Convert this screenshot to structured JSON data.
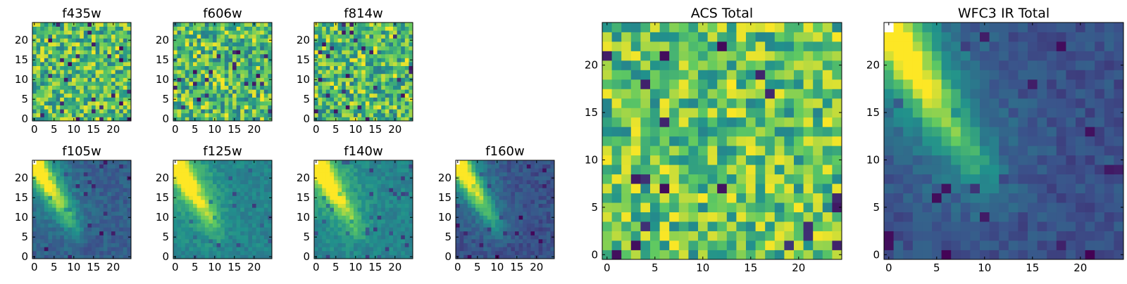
{
  "figure": {
    "colormap": "viridis",
    "colormap_stops": [
      "#440154",
      "#3b528b",
      "#21918c",
      "#5ec962",
      "#fde725"
    ]
  },
  "chart_data": [
    {
      "type": "heatmap",
      "title": "f435w",
      "grid": [
        25,
        25
      ],
      "xlim": [
        0,
        24
      ],
      "ylim": [
        0,
        24
      ],
      "xticks": [
        "0",
        "5",
        "10",
        "15",
        "20"
      ],
      "yticks": [
        "0",
        "5",
        "10",
        "15",
        "20"
      ],
      "pattern": "noise",
      "mean_level": 0.68,
      "seed": 11
    },
    {
      "type": "heatmap",
      "title": "f606w",
      "grid": [
        25,
        25
      ],
      "xlim": [
        0,
        24
      ],
      "ylim": [
        0,
        24
      ],
      "xticks": [
        "0",
        "5",
        "10",
        "15",
        "20"
      ],
      "yticks": [
        "0",
        "5",
        "10",
        "15",
        "20"
      ],
      "pattern": "noise",
      "mean_level": 0.66,
      "seed": 23
    },
    {
      "type": "heatmap",
      "title": "f814w",
      "grid": [
        25,
        25
      ],
      "xlim": [
        0,
        24
      ],
      "ylim": [
        0,
        24
      ],
      "xticks": [
        "0",
        "5",
        "10",
        "15",
        "20"
      ],
      "yticks": [
        "0",
        "5",
        "10",
        "15",
        "20"
      ],
      "pattern": "noise",
      "mean_level": 0.66,
      "seed": 37
    },
    {
      "type": "heatmap",
      "title": "f105w",
      "grid": [
        25,
        25
      ],
      "xlim": [
        0,
        24
      ],
      "ylim": [
        0,
        24
      ],
      "xticks": [
        "0",
        "5",
        "10",
        "15",
        "20"
      ],
      "yticks": [
        "0",
        "5",
        "10",
        "15",
        "20"
      ],
      "pattern": "diagonal_streak",
      "background_level": 0.3,
      "seed": 41
    },
    {
      "type": "heatmap",
      "title": "f125w",
      "grid": [
        25,
        25
      ],
      "xlim": [
        0,
        24
      ],
      "ylim": [
        0,
        24
      ],
      "xticks": [
        "0",
        "5",
        "10",
        "15",
        "20"
      ],
      "yticks": [
        "0",
        "5",
        "10",
        "15",
        "20"
      ],
      "pattern": "diagonal_streak",
      "background_level": 0.45,
      "seed": 53
    },
    {
      "type": "heatmap",
      "title": "f140w",
      "grid": [
        25,
        25
      ],
      "xlim": [
        0,
        24
      ],
      "ylim": [
        0,
        24
      ],
      "xticks": [
        "0",
        "5",
        "10",
        "15",
        "20"
      ],
      "yticks": [
        "0",
        "5",
        "10",
        "15",
        "20"
      ],
      "pattern": "diagonal_streak",
      "background_level": 0.45,
      "seed": 67
    },
    {
      "type": "heatmap",
      "title": "f160w",
      "grid": [
        25,
        25
      ],
      "xlim": [
        0,
        24
      ],
      "ylim": [
        0,
        24
      ],
      "xticks": [
        "0",
        "5",
        "10",
        "15",
        "20"
      ],
      "yticks": [
        "0",
        "5",
        "10",
        "15",
        "20"
      ],
      "pattern": "diagonal_streak",
      "background_level": 0.25,
      "seed": 79
    },
    {
      "type": "heatmap",
      "title": "ACS Total",
      "grid": [
        25,
        25
      ],
      "xlim": [
        0,
        24
      ],
      "ylim": [
        0,
        24
      ],
      "xticks": [
        "0",
        "5",
        "10",
        "15",
        "20"
      ],
      "yticks": [
        "0",
        "5",
        "10",
        "15",
        "20"
      ],
      "pattern": "noise",
      "mean_level": 0.72,
      "seed": 97
    },
    {
      "type": "heatmap",
      "title": "WFC3 IR Total",
      "grid": [
        25,
        25
      ],
      "xlim": [
        0,
        24
      ],
      "ylim": [
        0,
        24
      ],
      "xticks": [
        "0",
        "5",
        "10",
        "15",
        "20"
      ],
      "yticks": [
        "0",
        "5",
        "10",
        "15",
        "20"
      ],
      "pattern": "diagonal_streak",
      "background_level": 0.25,
      "seed": 101
    }
  ]
}
